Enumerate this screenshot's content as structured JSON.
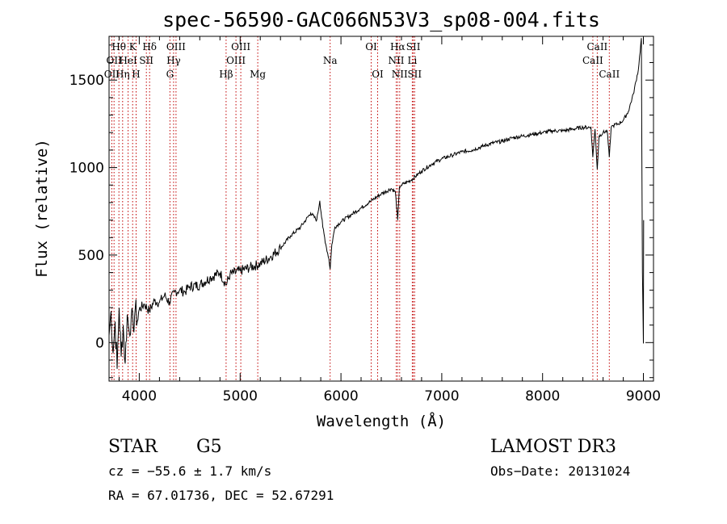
{
  "chart_data": {
    "type": "line",
    "title": "spec-56590-GAC066N53V3_sp08-004.fits",
    "xlabel": "Wavelength (Å)",
    "ylabel": "Flux (relative)",
    "xlim": [
      3700,
      9100
    ],
    "ylim": [
      -220,
      1750
    ],
    "xticks": [
      4000,
      5000,
      6000,
      7000,
      8000,
      9000
    ],
    "yticks": [
      0,
      500,
      1000,
      1500
    ],
    "series": [
      {
        "name": "flux",
        "x": [
          3700,
          3720,
          3740,
          3760,
          3780,
          3800,
          3820,
          3840,
          3860,
          3880,
          3900,
          3920,
          3940,
          3960,
          3980,
          4000,
          4050,
          4100,
          4150,
          4200,
          4250,
          4300,
          4350,
          4400,
          4450,
          4500,
          4600,
          4700,
          4800,
          4861,
          4900,
          5000,
          5100,
          5200,
          5300,
          5400,
          5500,
          5600,
          5700,
          5760,
          5790,
          5820,
          5850,
          5880,
          5893,
          5910,
          5940,
          6000,
          6100,
          6200,
          6300,
          6400,
          6500,
          6540,
          6563,
          6580,
          6600,
          6700,
          6800,
          6900,
          7000,
          7100,
          7200,
          7300,
          7400,
          7500,
          7600,
          7700,
          7800,
          7900,
          8000,
          8100,
          8200,
          8300,
          8400,
          8480,
          8498,
          8520,
          8542,
          8560,
          8600,
          8640,
          8662,
          8680,
          8700,
          8750,
          8800,
          8850,
          8900,
          8950,
          8980,
          8990,
          9000,
          9002
        ],
        "values": [
          40,
          180,
          -60,
          120,
          -150,
          200,
          -80,
          100,
          -120,
          160,
          60,
          150,
          80,
          200,
          120,
          190,
          220,
          180,
          240,
          230,
          270,
          230,
          290,
          300,
          290,
          320,
          330,
          370,
          400,
          330,
          390,
          410,
          430,
          450,
          490,
          540,
          610,
          660,
          740,
          700,
          810,
          660,
          560,
          480,
          420,
          560,
          660,
          690,
          730,
          770,
          810,
          850,
          880,
          860,
          700,
          890,
          900,
          930,
          980,
          1020,
          1050,
          1070,
          1090,
          1100,
          1120,
          1140,
          1150,
          1170,
          1180,
          1190,
          1200,
          1210,
          1210,
          1220,
          1230,
          1230,
          1060,
          1220,
          990,
          1180,
          1200,
          1210,
          1060,
          1230,
          1240,
          1250,
          1270,
          1320,
          1420,
          1560,
          1740,
          400,
          -5,
          700
        ]
      }
    ],
    "lines": [
      {
        "wl": 3727,
        "name": "OII",
        "row": 3
      },
      {
        "wl": 3750,
        "name": "OII",
        "row": 2
      },
      {
        "wl": 3798,
        "name": "Hθ",
        "row": 1
      },
      {
        "wl": 3835,
        "name": "Hη",
        "row": 3
      },
      {
        "wl": 3889,
        "name": "HeI",
        "row": 2
      },
      {
        "wl": 3934,
        "name": "K",
        "row": 1
      },
      {
        "wl": 3968,
        "name": "H",
        "row": 3
      },
      {
        "wl": 4070,
        "name": "SII",
        "row": 2
      },
      {
        "wl": 4102,
        "name": "Hδ",
        "row": 1
      },
      {
        "wl": 4304,
        "name": "G",
        "row": 3
      },
      {
        "wl": 4340,
        "name": "Hγ",
        "row": 2
      },
      {
        "wl": 4364,
        "name": "OIII",
        "row": 1
      },
      {
        "wl": 4861,
        "name": "Hβ",
        "row": 3
      },
      {
        "wl": 4959,
        "name": "OIII",
        "row": 2
      },
      {
        "wl": 5007,
        "name": "OIII",
        "row": 1
      },
      {
        "wl": 5175,
        "name": "Mg",
        "row": 3
      },
      {
        "wl": 5893,
        "name": "Na",
        "row": 2
      },
      {
        "wl": 6300,
        "name": "OI",
        "row": 1
      },
      {
        "wl": 6364,
        "name": "OI",
        "row": 3
      },
      {
        "wl": 6548,
        "name": "NII",
        "row": 2
      },
      {
        "wl": 6563,
        "name": "Hα",
        "row": 1
      },
      {
        "wl": 6583,
        "name": "NII",
        "row": 3
      },
      {
        "wl": 6708,
        "name": "Li",
        "row": 2
      },
      {
        "wl": 6717,
        "name": "SII",
        "row": 1
      },
      {
        "wl": 6731,
        "name": "SII",
        "row": 3
      },
      {
        "wl": 8498,
        "name": "CaII",
        "row": 2
      },
      {
        "wl": 8542,
        "name": "CaII",
        "row": 1
      },
      {
        "wl": 8662,
        "name": "CaII",
        "row": 3
      }
    ]
  },
  "footer": {
    "class": "STAR",
    "subclass": "G5",
    "survey": "LAMOST DR3",
    "cz": "cz = −55.6 ± 1.7 km/s",
    "obs_date": "Obs−Date: 20131024",
    "coords": "RA =  67.01736, DEC =  52.67291"
  },
  "colors": {
    "line_marker": "#c00000",
    "spectrum": "#000000",
    "axes": "#000000"
  }
}
